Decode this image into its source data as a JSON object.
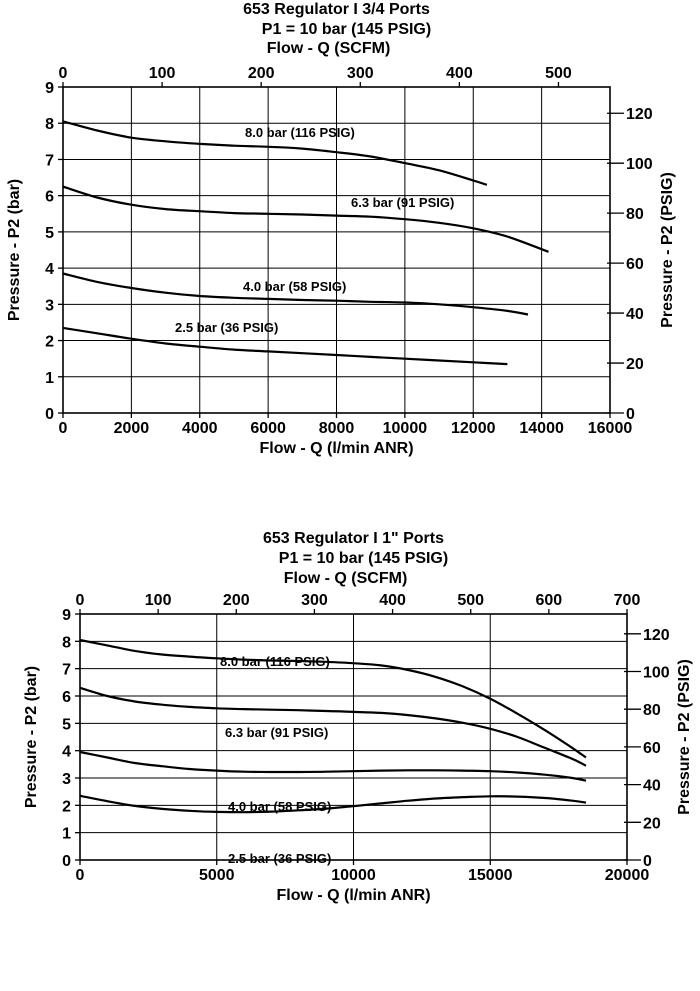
{
  "chart_data": [
    {
      "type": "line",
      "title": "653 Regulator I 3/4 Ports",
      "subtitle": "P1 = 10 bar (145 PSIG)",
      "xlabel": "Flow - Q (l/min ANR)",
      "x2label": "Flow - Q (SCFM)",
      "ylabel": "Pressure - P2 (bar)",
      "y2label": "Pressure - P2 (PSIG)",
      "xlim": [
        0,
        16000
      ],
      "ylim": [
        0,
        9
      ],
      "x2lim": [
        0,
        552
      ],
      "y2lim": [
        0,
        130.5
      ],
      "xticks": [
        "0",
        "2000",
        "4000",
        "6000",
        "8000",
        "10000",
        "12000",
        "14000",
        "16000"
      ],
      "yticks": [
        "0",
        "1",
        "2",
        "3",
        "4",
        "5",
        "6",
        "7",
        "8",
        "9"
      ],
      "x2ticks": [
        "0",
        "100",
        "200",
        "300",
        "400",
        "500"
      ],
      "y2ticks": [
        "0",
        "20",
        "40",
        "60",
        "80",
        "100",
        "120"
      ],
      "grid": true,
      "series": [
        {
          "name": "8.0 bar (116 PSIG)",
          "x": [
            0,
            1000,
            2000,
            3000,
            4000,
            5000,
            6000,
            7000,
            8000,
            9000,
            10000,
            11000,
            12000,
            12400
          ],
          "y": [
            8.05,
            7.8,
            7.6,
            7.5,
            7.43,
            7.38,
            7.35,
            7.3,
            7.2,
            7.08,
            6.9,
            6.7,
            6.42,
            6.3
          ]
        },
        {
          "name": "6.3 bar (91 PSIG)",
          "x": [
            0,
            1000,
            2000,
            3000,
            4000,
            5000,
            6000,
            7000,
            8000,
            9000,
            10000,
            11000,
            12000,
            13000,
            14200
          ],
          "y": [
            6.25,
            5.95,
            5.75,
            5.63,
            5.57,
            5.52,
            5.5,
            5.48,
            5.45,
            5.42,
            5.35,
            5.25,
            5.1,
            4.87,
            4.45
          ]
        },
        {
          "name": "4.0 bar (58 PSIG)",
          "x": [
            0,
            1000,
            2000,
            3000,
            4000,
            5000,
            6000,
            7000,
            8000,
            9000,
            10000,
            11000,
            12000,
            13000,
            13600
          ],
          "y": [
            3.85,
            3.62,
            3.45,
            3.32,
            3.23,
            3.18,
            3.15,
            3.12,
            3.1,
            3.07,
            3.05,
            3.0,
            2.92,
            2.82,
            2.72
          ]
        },
        {
          "name": "2.5 bar (36 PSIG)",
          "x": [
            0,
            1000,
            2000,
            3000,
            4000,
            5000,
            6000,
            7000,
            8000,
            9000,
            10000,
            11000,
            12000,
            13000
          ],
          "y": [
            2.35,
            2.2,
            2.05,
            1.92,
            1.83,
            1.75,
            1.7,
            1.65,
            1.6,
            1.55,
            1.5,
            1.45,
            1.4,
            1.35
          ]
        }
      ]
    },
    {
      "type": "line",
      "title": "653 Regulator I 1\" Ports",
      "subtitle": "P1 = 10 bar (145 PSIG)",
      "xlabel": "Flow - Q (l/min ANR)",
      "x2label": "Flow - Q (SCFM)",
      "ylabel": "Pressure - P2 (bar)",
      "y2label": "Pressure - P2 (PSIG)",
      "xlim": [
        0,
        20000
      ],
      "ylim": [
        0,
        9
      ],
      "x2lim": [
        0,
        700
      ],
      "y2lim": [
        0,
        130.5
      ],
      "xticks": [
        "0",
        "5000",
        "10000",
        "15000",
        "20000"
      ],
      "yticks": [
        "0",
        "1",
        "2",
        "3",
        "4",
        "5",
        "6",
        "7",
        "8",
        "9"
      ],
      "x2ticks": [
        "0",
        "100",
        "200",
        "300",
        "400",
        "500",
        "600",
        "700"
      ],
      "y2ticks": [
        "0",
        "20",
        "40",
        "60",
        "80",
        "100",
        "120"
      ],
      "grid": true,
      "series": [
        {
          "name": "8.0 bar (116 PSIG)",
          "x": [
            0,
            1000,
            2000,
            3000,
            4000,
            5000,
            6000,
            7000,
            8000,
            9000,
            10000,
            11000,
            12000,
            13000,
            14000,
            15000,
            16000,
            17000,
            18000,
            18500
          ],
          "y": [
            8.05,
            7.85,
            7.65,
            7.52,
            7.44,
            7.38,
            7.33,
            7.3,
            7.28,
            7.25,
            7.2,
            7.12,
            6.95,
            6.7,
            6.35,
            5.9,
            5.35,
            4.75,
            4.1,
            3.75
          ]
        },
        {
          "name": "6.3 bar (91 PSIG)",
          "x": [
            0,
            1000,
            2000,
            3000,
            4000,
            5000,
            6000,
            7000,
            8000,
            9000,
            10000,
            11000,
            12000,
            13000,
            14000,
            15000,
            16000,
            17000,
            18000,
            18500
          ],
          "y": [
            6.3,
            6.0,
            5.8,
            5.68,
            5.6,
            5.55,
            5.52,
            5.5,
            5.48,
            5.45,
            5.42,
            5.38,
            5.3,
            5.18,
            5.02,
            4.8,
            4.5,
            4.1,
            3.7,
            3.45
          ]
        },
        {
          "name": "4.0 bar (58 PSIG)",
          "x": [
            0,
            1000,
            2000,
            3000,
            4000,
            5000,
            6000,
            7000,
            8000,
            9000,
            10000,
            11000,
            12000,
            13000,
            14000,
            15000,
            16000,
            17000,
            18000,
            18500
          ],
          "y": [
            3.95,
            3.75,
            3.55,
            3.43,
            3.33,
            3.27,
            3.23,
            3.22,
            3.22,
            3.23,
            3.25,
            3.27,
            3.28,
            3.28,
            3.27,
            3.25,
            3.2,
            3.12,
            3.0,
            2.9
          ]
        },
        {
          "name": "2.5 bar (36 PSIG)",
          "x": [
            0,
            1000,
            2000,
            3000,
            4000,
            5000,
            6000,
            7000,
            8000,
            9000,
            10000,
            11000,
            12000,
            13000,
            14000,
            15000,
            16000,
            17000,
            18000,
            18500
          ],
          "y": [
            2.35,
            2.15,
            1.98,
            1.87,
            1.8,
            1.76,
            1.75,
            1.77,
            1.82,
            1.88,
            1.97,
            2.07,
            2.17,
            2.25,
            2.3,
            2.33,
            2.32,
            2.27,
            2.17,
            2.1
          ]
        }
      ]
    }
  ]
}
